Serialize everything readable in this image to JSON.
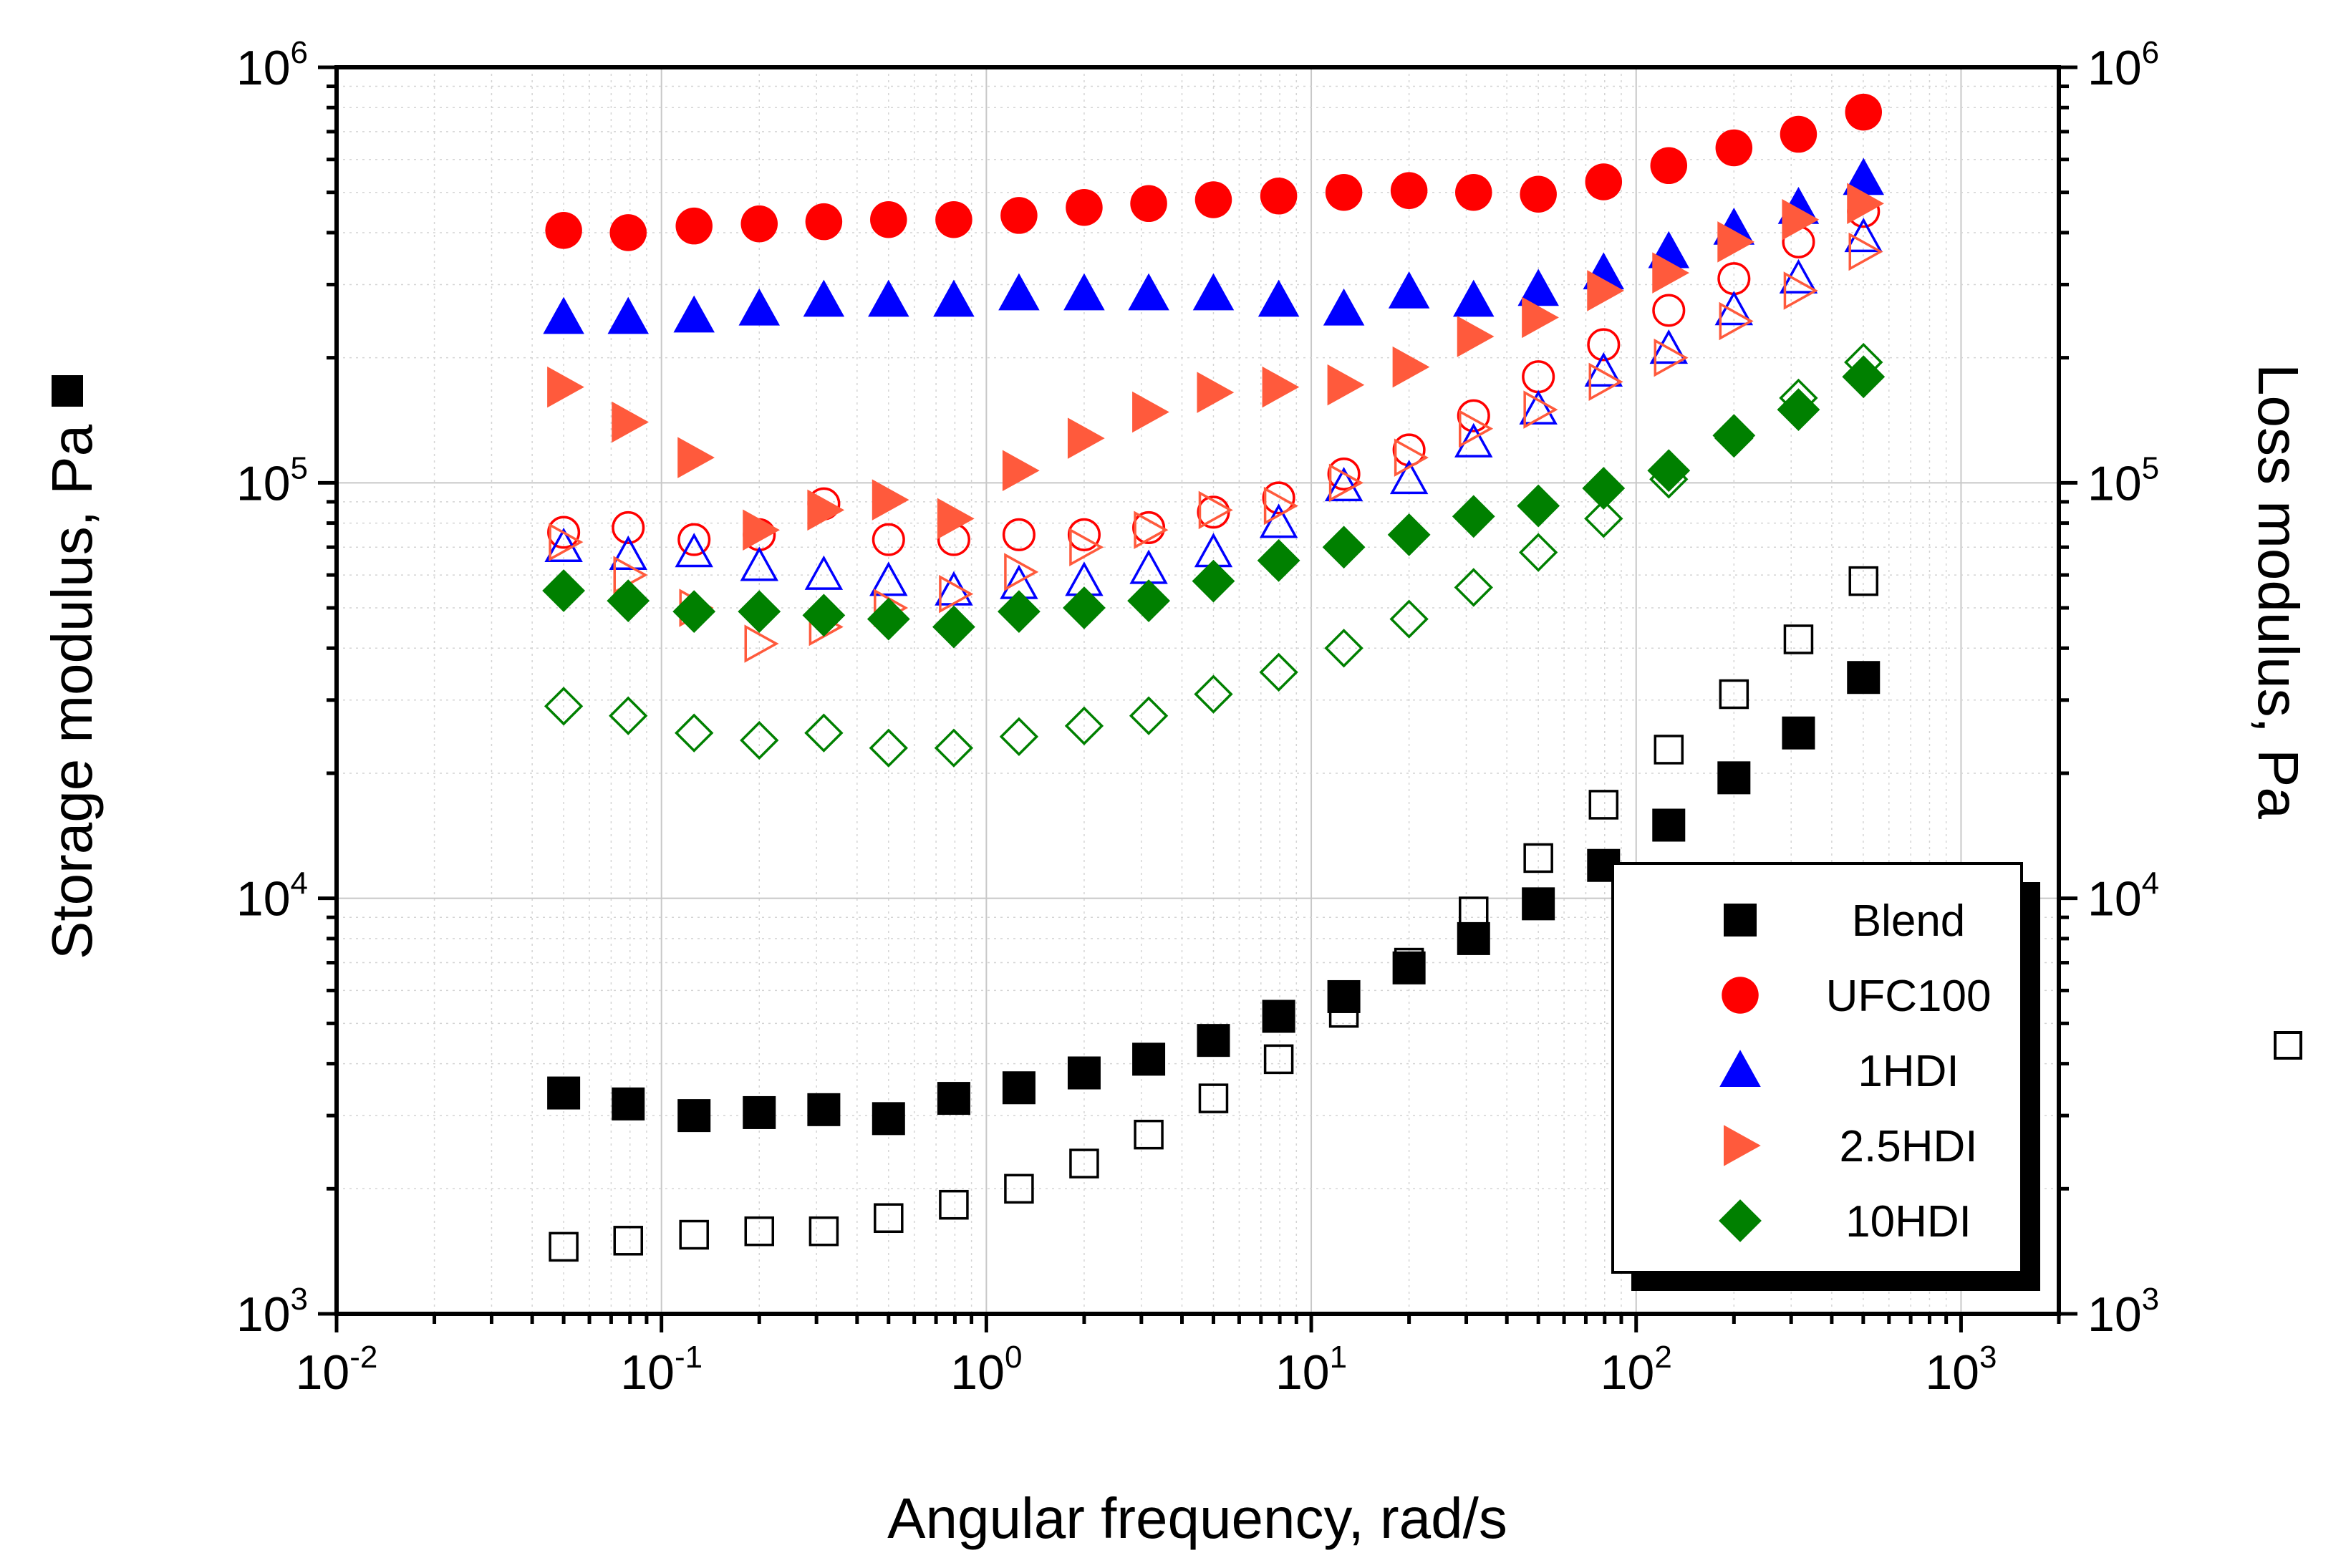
{
  "chart_data": {
    "type": "scatter",
    "xscale": "log",
    "yscale": "log",
    "xlabel": "Angular frequency, rad/s",
    "ylabel_left": "Storage modulus, Pa",
    "ylabel_right": "Loss modulus, Pa",
    "ylabel_left_marker": "filled-square",
    "ylabel_right_marker": "open-square",
    "xlim": [
      0.01,
      2000
    ],
    "ylim": [
      1000,
      1000000
    ],
    "x_ticks": [
      {
        "base": "10",
        "exp": "-2",
        "value": 0.01
      },
      {
        "base": "10",
        "exp": "-1",
        "value": 0.1
      },
      {
        "base": "10",
        "exp": "0",
        "value": 1
      },
      {
        "base": "10",
        "exp": "1",
        "value": 10
      },
      {
        "base": "10",
        "exp": "2",
        "value": 100
      },
      {
        "base": "10",
        "exp": "3",
        "value": 1000
      }
    ],
    "y_ticks": [
      {
        "base": "10",
        "exp": "3",
        "value": 1000
      },
      {
        "base": "10",
        "exp": "4",
        "value": 10000
      },
      {
        "base": "10",
        "exp": "5",
        "value": 100000
      },
      {
        "base": "10",
        "exp": "6",
        "value": 1000000
      }
    ],
    "grid": true,
    "legend_position": "bottom-right",
    "x": [
      0.05,
      0.079,
      0.126,
      0.2,
      0.316,
      0.5,
      0.794,
      1.26,
      2.0,
      3.16,
      5.0,
      7.94,
      12.6,
      20.0,
      31.6,
      50.0,
      79.4,
      126,
      200,
      316,
      501
    ],
    "series": [
      {
        "name": "Blend",
        "marker": "square",
        "color": "#000000",
        "storage": [
          3400,
          3200,
          3000,
          3050,
          3100,
          2950,
          3300,
          3500,
          3800,
          4100,
          4550,
          5200,
          5800,
          6800,
          8000,
          9700,
          12000,
          15000,
          19500,
          25000,
          34000
        ],
        "loss": [
          1450,
          1500,
          1550,
          1580,
          1580,
          1700,
          1830,
          2000,
          2300,
          2700,
          3300,
          4100,
          5300,
          7000,
          9300,
          12500,
          16800,
          22800,
          31000,
          42000,
          58000
        ]
      },
      {
        "name": "UFC100",
        "marker": "circle",
        "color": "#ff0000",
        "storage": [
          405000,
          400000,
          415000,
          420000,
          425000,
          430000,
          430000,
          440000,
          460000,
          470000,
          480000,
          490000,
          500000,
          505000,
          500000,
          495000,
          530000,
          580000,
          640000,
          690000,
          780000
        ],
        "loss": [
          76000,
          78000,
          73000,
          75000,
          89000,
          73000,
          73000,
          75000,
          75000,
          78000,
          85000,
          92000,
          105000,
          120000,
          145000,
          180000,
          215000,
          260000,
          310000,
          380000,
          450000
        ]
      },
      {
        "name": "1HDI",
        "marker": "triangle-up",
        "color": "#0000ff",
        "storage": [
          250000,
          250000,
          252000,
          262000,
          275000,
          275000,
          275000,
          285000,
          285000,
          285000,
          285000,
          275000,
          262000,
          288000,
          275000,
          292000,
          320000,
          360000,
          410000,
          460000,
          540000
        ],
        "loss": [
          70000,
          67000,
          68000,
          63000,
          60000,
          58000,
          55000,
          57000,
          58000,
          62000,
          68000,
          80000,
          98000,
          102000,
          125000,
          150000,
          185000,
          210000,
          260000,
          310000,
          390000
        ]
      },
      {
        "name": "2.5HDI",
        "marker": "triangle-right",
        "color": "#ff5a3c",
        "storage": [
          170000,
          140000,
          115000,
          77000,
          86000,
          91000,
          82000,
          107000,
          128000,
          148000,
          165000,
          170000,
          172000,
          190000,
          225000,
          250000,
          290000,
          320000,
          380000,
          430000,
          470000
        ],
        "loss": [
          72000,
          60000,
          50000,
          41000,
          45000,
          50000,
          54000,
          61000,
          70000,
          77000,
          86000,
          88000,
          100000,
          115000,
          135000,
          150000,
          175000,
          200000,
          245000,
          290000,
          360000
        ]
      },
      {
        "name": "10HDI",
        "marker": "diamond",
        "color": "#008000",
        "storage": [
          55000,
          52000,
          49000,
          49000,
          48000,
          47000,
          45000,
          49000,
          50000,
          52000,
          58000,
          65000,
          70000,
          75000,
          83000,
          88000,
          97000,
          107000,
          130000,
          150000,
          180000
        ],
        "loss": [
          29000,
          27500,
          25000,
          24000,
          25000,
          23000,
          23000,
          24500,
          26000,
          27500,
          31000,
          35000,
          40000,
          47000,
          56000,
          68000,
          82000,
          102000,
          128000,
          160000,
          195000
        ]
      }
    ]
  }
}
